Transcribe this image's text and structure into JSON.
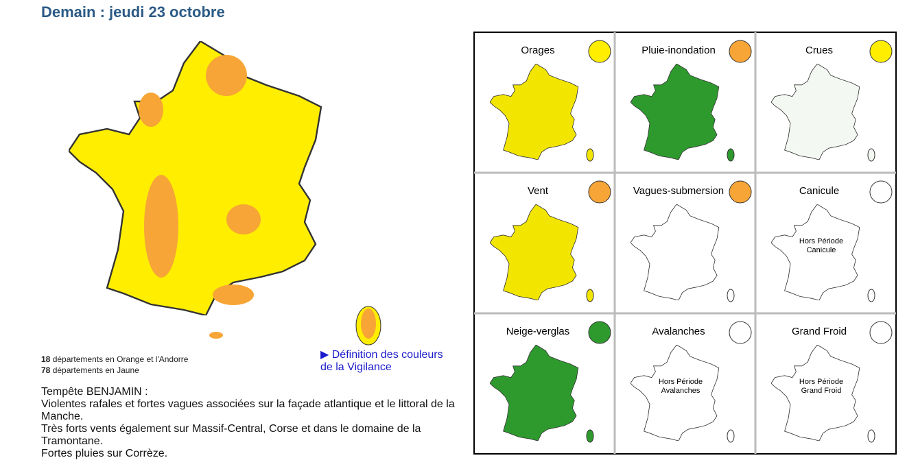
{
  "header": {
    "title": "Demain : jeudi 23 octobre"
  },
  "summary": [
    {
      "count": "18",
      "text": "départements en Orange et l'Andorre"
    },
    {
      "count": "78",
      "text": "départements en Jaune"
    }
  ],
  "link": {
    "text": "▶ Définition des couleurs de la Vigilance"
  },
  "description": [
    "Tempête BENJAMIN :",
    "Violentes rafales et fortes vagues associées sur la façade atlantique et le littoral de la Manche.",
    "Très forts vents également sur Massif-Central, Corse et dans le domaine de la Tramontane.",
    "Fortes pluies sur Corrèze."
  ],
  "panels": [
    {
      "label": "Orages",
      "level": "#ffee00",
      "map": "#f2e600"
    },
    {
      "label": "Pluie-inondation",
      "level": "#f7a536",
      "map": "#2e9a2e"
    },
    {
      "label": "Crues",
      "level": "#ffee00",
      "map": "#f4f8f2"
    },
    {
      "label": "Vent",
      "level": "#f7a536",
      "map": "#f2e600"
    },
    {
      "label": "Vagues-submersion",
      "level": "#f7a536",
      "map": "#ffffff"
    },
    {
      "label": "Canicule",
      "level": "#ffffff",
      "map": "#ffffff",
      "note": [
        "Hors Période",
        "Canicule"
      ]
    },
    {
      "label": "Neige-verglas",
      "level": "#2e9a2e",
      "map": "#2e9a2e"
    },
    {
      "label": "Avalanches",
      "level": "#ffffff",
      "map": "#ffffff",
      "note": [
        "Hors Période",
        "Avalanches"
      ]
    },
    {
      "label": "Grand Froid",
      "level": "#ffffff",
      "map": "#ffffff",
      "note": [
        "Hors Période",
        "Grand Froid"
      ]
    }
  ]
}
